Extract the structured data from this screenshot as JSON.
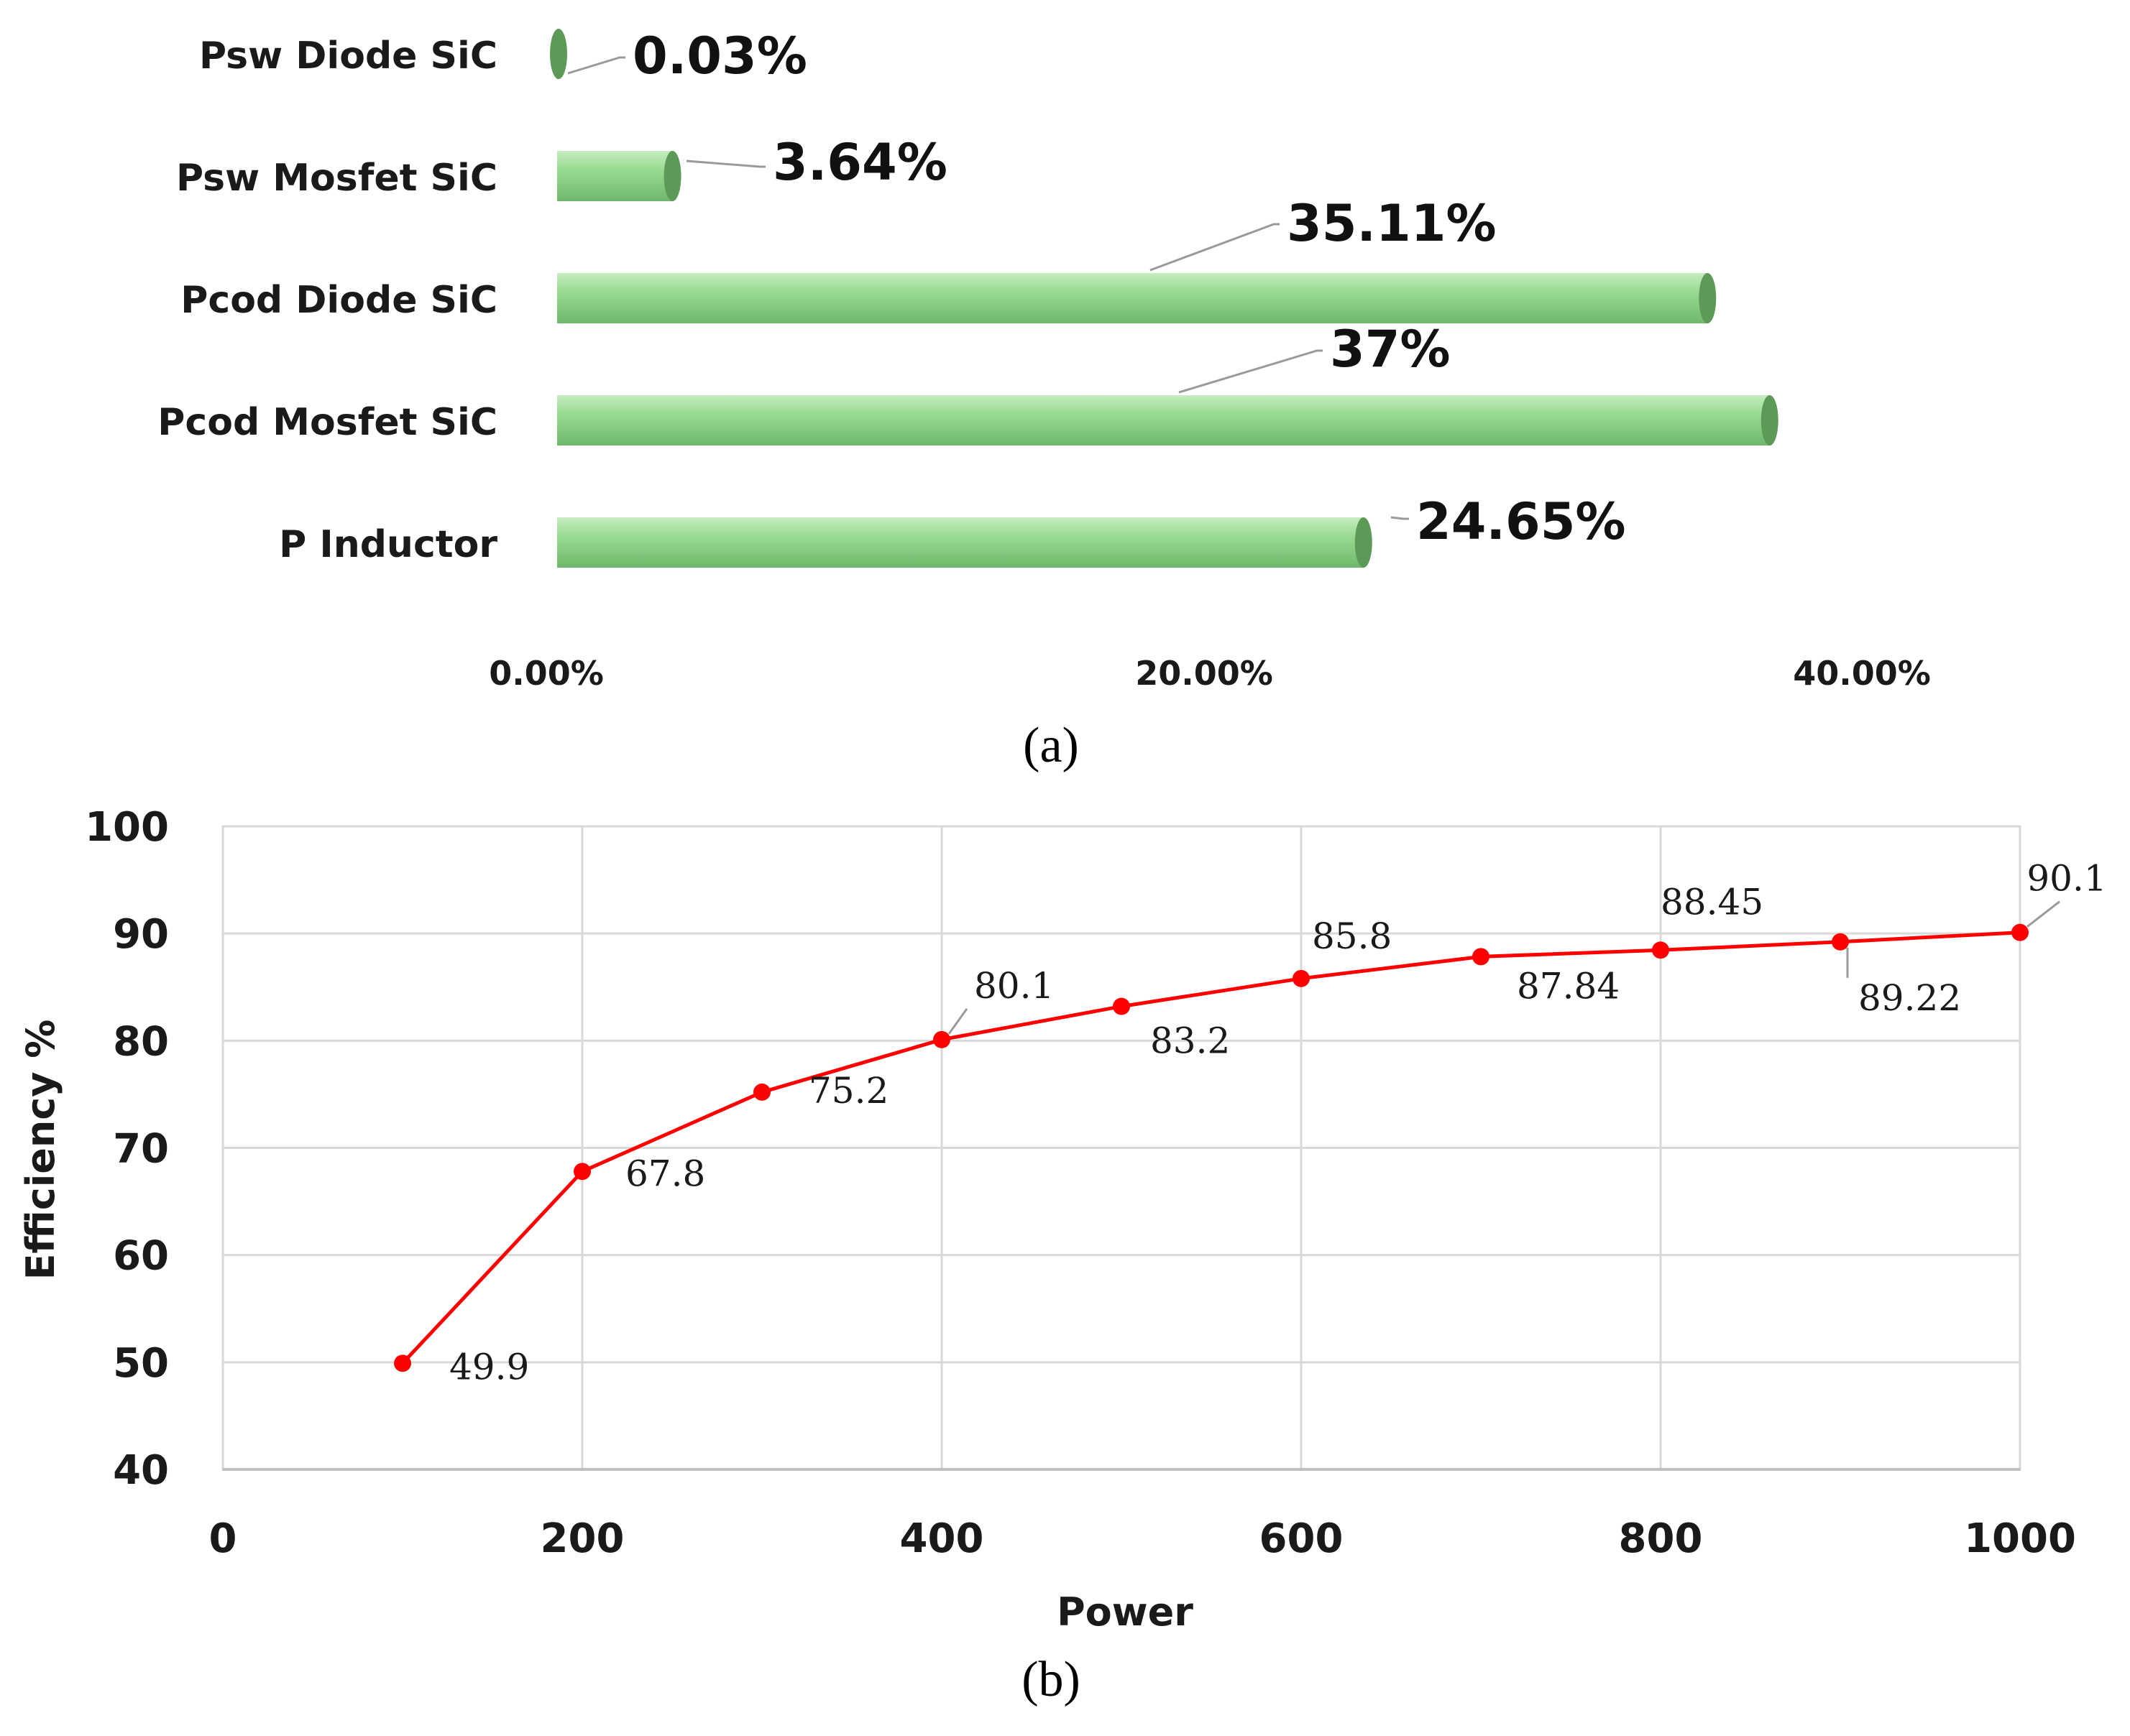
{
  "chart_data": [
    {
      "type": "bar",
      "orientation": "horizontal",
      "caption": "(a)",
      "categories": [
        "Psw Diode SiC",
        "Psw Mosfet SiC",
        "Pcod Diode SiC",
        "Pcod Mosfet SiC",
        "P Inductor"
      ],
      "values": [
        0.03,
        3.64,
        35.11,
        37,
        24.65
      ],
      "data_labels": [
        "0.03%",
        "3.64%",
        "35.11%",
        "37%",
        "24.65%"
      ],
      "x_ticks": [
        "0.00%",
        "20.00%",
        "40.00%"
      ],
      "xlim": [
        0,
        40
      ],
      "bar_color": "#8fd48a",
      "bar_end_color": "#5d9a58"
    },
    {
      "type": "line",
      "caption": "(b)",
      "xlabel": "Power",
      "ylabel": "Efficiency %",
      "x": [
        100,
        200,
        300,
        400,
        500,
        600,
        700,
        800,
        900,
        1000
      ],
      "y": [
        49.9,
        67.8,
        75.2,
        80.1,
        83.2,
        85.8,
        87.84,
        88.45,
        89.22,
        90.1
      ],
      "point_labels": [
        "49.9",
        "67.8",
        "75.2",
        "80.1",
        "83.2",
        "85.8",
        "87.84",
        "88.45",
        "89.22",
        "90.1"
      ],
      "x_ticks": [
        "0",
        "200",
        "400",
        "600",
        "800",
        "1000"
      ],
      "y_ticks": [
        "40",
        "50",
        "60",
        "70",
        "80",
        "90",
        "100"
      ],
      "xlim": [
        0,
        1000
      ],
      "ylim": [
        40,
        100
      ],
      "grid": true,
      "line_color": "#ff0000"
    }
  ]
}
